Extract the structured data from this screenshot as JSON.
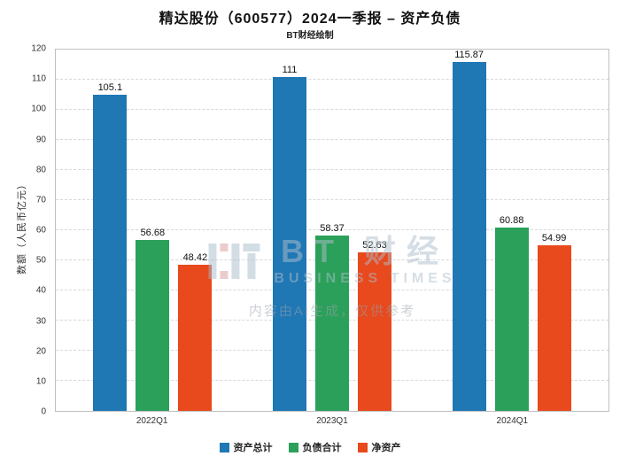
{
  "header": {
    "title": "精达股份（600577）2024一季报 – 资产负债",
    "subtitle": "BT财经绘制"
  },
  "watermark": {
    "brand_cn": "BT 财经",
    "brand_en": "BUSINESS TIMES",
    "notice": "内容由AI生成，仅供参考"
  },
  "chart_data": {
    "type": "bar",
    "title": "精达股份（600577）2024一季报 – 资产负债",
    "subtitle": "BT财经绘制",
    "categories": [
      "2022Q1",
      "2023Q1",
      "2024Q1"
    ],
    "series": [
      {
        "name": "资产总计",
        "color": "#1f77b4",
        "values": [
          105.1,
          111,
          115.87
        ]
      },
      {
        "name": "负债合计",
        "color": "#2ba05a",
        "values": [
          56.68,
          58.37,
          60.88
        ]
      },
      {
        "name": "净资产",
        "color": "#e8491d",
        "values": [
          48.42,
          52.63,
          54.99
        ]
      }
    ],
    "xlabel": "",
    "ylabel": "数额（人民币亿元）",
    "ylim": [
      0,
      120
    ],
    "ytick_step": 10,
    "grid": true,
    "grid_style": "dashed",
    "legend_position": "bottom"
  }
}
